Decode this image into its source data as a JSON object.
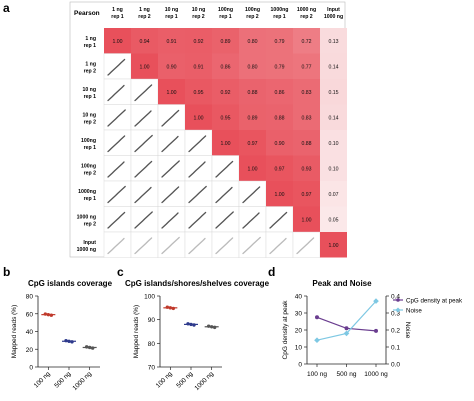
{
  "panels": {
    "a": {
      "letter": "a",
      "corner_label": "Pearson",
      "col_labels": [
        [
          "1 ng",
          "rep 1"
        ],
        [
          "1 ng",
          "rep 2"
        ],
        [
          "10 ng",
          "rep 1"
        ],
        [
          "10 ng",
          "rep 2"
        ],
        [
          "100ng",
          "rep 1"
        ],
        [
          "100ng",
          "rep 2"
        ],
        [
          "1000ng",
          "rep 1"
        ],
        [
          "1000 ng",
          "rep 2"
        ],
        [
          "Input",
          "1000 ng"
        ]
      ],
      "row_labels": [
        [
          "1 ng",
          "rep 1"
        ],
        [
          "1 ng",
          "rep 2"
        ],
        [
          "10 ng",
          "rep 1"
        ],
        [
          "10 ng",
          "rep 2"
        ],
        [
          "100ng",
          "rep 1"
        ],
        [
          "100ng",
          "rep 2"
        ],
        [
          "1000ng",
          "rep 1"
        ],
        [
          "1000 ng",
          "rep 2"
        ],
        [
          "Input",
          "1000 ng"
        ]
      ]
    },
    "b": {
      "letter": "b"
    },
    "c": {
      "letter": "c"
    },
    "d": {
      "letter": "d"
    }
  },
  "chart_data": [
    {
      "type": "heatmap",
      "title": "",
      "matrix": [
        [
          1.0,
          0.94,
          0.91,
          0.92,
          0.89,
          0.8,
          0.79,
          0.72,
          0.13
        ],
        [
          null,
          1.0,
          0.9,
          0.91,
          0.86,
          0.8,
          0.79,
          0.77,
          0.14
        ],
        [
          null,
          null,
          1.0,
          0.95,
          0.92,
          0.88,
          0.86,
          0.83,
          0.15
        ],
        [
          null,
          null,
          null,
          1.0,
          0.95,
          0.89,
          0.88,
          0.83,
          0.14
        ],
        [
          null,
          null,
          null,
          null,
          1.0,
          0.97,
          0.9,
          0.88,
          0.1
        ],
        [
          null,
          null,
          null,
          null,
          null,
          1.0,
          0.97,
          0.93,
          0.1
        ],
        [
          null,
          null,
          null,
          null,
          null,
          null,
          1.0,
          0.97,
          0.07
        ],
        [
          null,
          null,
          null,
          null,
          null,
          null,
          null,
          1.0,
          0.05
        ],
        [
          null,
          null,
          null,
          null,
          null,
          null,
          null,
          null,
          1.0
        ]
      ],
      "lower_triangle": "scatter plots",
      "colors": {
        "high": "#e8505b",
        "low": "#fbe8e9"
      }
    },
    {
      "type": "scatter",
      "title": "CpG islands coverage",
      "ylabel": "Mapped reads (%)",
      "categories": [
        "100 ng",
        "500 ng",
        "1000 ng"
      ],
      "values": [
        59,
        29,
        22
      ],
      "ylim": [
        0,
        80
      ],
      "yticks": [
        0,
        20,
        40,
        60,
        80
      ],
      "colors": [
        "#c0392b",
        "#2e3a8c",
        "#555555"
      ]
    },
    {
      "type": "scatter",
      "title": "CpG islands/shores/shelves coverage",
      "ylabel": "Mapped reads (%)",
      "categories": [
        "100 ng",
        "500 ng",
        "1000 ng"
      ],
      "values": [
        95,
        88,
        87
      ],
      "ylim": [
        70,
        100
      ],
      "yticks": [
        70,
        80,
        90,
        100
      ],
      "colors": [
        "#c0392b",
        "#2e3a8c",
        "#555555"
      ]
    },
    {
      "type": "line",
      "title": "Peak and Noise",
      "categories": [
        "100 ng",
        "500 ng",
        "1000 ng"
      ],
      "ylabel": "CpG density at peak",
      "y2label": "Noise",
      "ylim": [
        0,
        40
      ],
      "yticks": [
        0,
        10,
        20,
        30,
        40
      ],
      "y2lim": [
        0.0,
        0.4
      ],
      "y2ticks": [
        0.0,
        0.1,
        0.2,
        0.3,
        0.4
      ],
      "series": [
        {
          "name": "CpG density at peak",
          "axis": "left",
          "values": [
            27.5,
            21,
            19.5
          ],
          "color": "#6a3d8f"
        },
        {
          "name": "Noise",
          "axis": "right",
          "values": [
            0.14,
            0.18,
            0.37
          ],
          "color": "#7ec8e3"
        }
      ],
      "legend": "top-right"
    }
  ]
}
